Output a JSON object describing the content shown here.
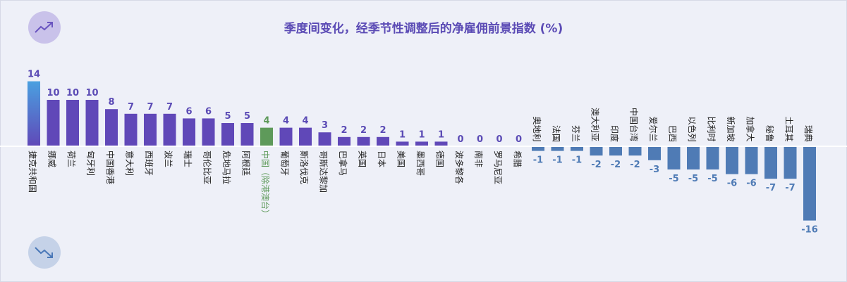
{
  "title": "季度间变化，经季节性调整后的净雇佣前景指数 (%)",
  "icons": {
    "up": "trend-up-icon",
    "down": "trend-down-icon"
  },
  "colors": {
    "positive": "#6048b8",
    "positive_top": "#4aa0e0",
    "highlight": "#5e9a5a",
    "negative": "#4f7bb5",
    "value_label": "#5b4bb5",
    "axis": "#ffffff",
    "category_label": "#222222"
  },
  "chart_data": {
    "type": "bar",
    "title": "季度间变化，经季节性调整后的净雇佣前景指数 (%)",
    "categories": [
      "捷克共和国",
      "挪威",
      "荷兰",
      "匈牙利",
      "中国香港",
      "意大利",
      "西班牙",
      "波兰",
      "瑞士",
      "哥伦比亚",
      "危地马拉",
      "阿根廷",
      "中国（除港澳台）",
      "葡萄牙",
      "斯洛伐克",
      "哥斯达黎加",
      "巴拿马",
      "英国",
      "日本",
      "美国",
      "墨西哥",
      "德国",
      "波多黎各",
      "南非",
      "罗马尼亚",
      "希腊",
      "奥地利",
      "法国",
      "芬兰",
      "澳大利亚",
      "印度",
      "中国台湾",
      "爱尔兰",
      "巴西",
      "以色列",
      "比利时",
      "新加坡",
      "加拿大",
      "秘鲁",
      "土耳其",
      "瑞典"
    ],
    "values": [
      14,
      10,
      10,
      10,
      8,
      7,
      7,
      7,
      6,
      6,
      5,
      5,
      4,
      4,
      4,
      3,
      2,
      2,
      2,
      1,
      1,
      1,
      0,
      0,
      0,
      0,
      -1,
      -1,
      -1,
      -2,
      -2,
      -2,
      -3,
      -5,
      -5,
      -5,
      -6,
      -6,
      -7,
      -7,
      -16
    ],
    "highlight": "中国（除港澳台）",
    "legend": "none",
    "grid": false
  }
}
